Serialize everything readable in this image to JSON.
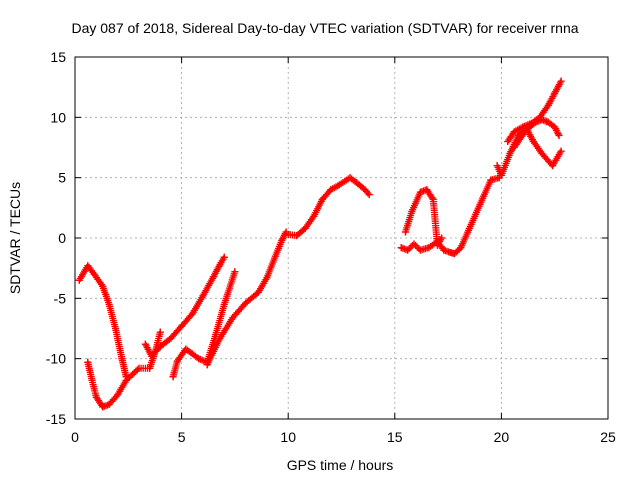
{
  "chart_data": {
    "type": "scatter",
    "title": "Day 087 of 2018, Sidereal Day-to-day VTEC variation (SDTVAR) for receiver rnna",
    "xlabel": "GPS time / hours",
    "ylabel": "SDTVAR / TECUs",
    "xlim": [
      0,
      25
    ],
    "ylim": [
      -15,
      15
    ],
    "xticks": [
      "0",
      "5",
      "10",
      "15",
      "20",
      "25"
    ],
    "yticks": [
      "-15",
      "-10",
      "-5",
      "0",
      "5",
      "10",
      "15"
    ],
    "grid": true,
    "marker": "plus",
    "color": "#ff0000",
    "series": [
      {
        "x": [
          0.2,
          0.6,
          0.9,
          1.3,
          1.6,
          1.9,
          2.2,
          2.4
        ],
        "y": [
          -3.5,
          -2.3,
          -3.0,
          -4.0,
          -5.5,
          -7.5,
          -10.0,
          -11.5
        ]
      },
      {
        "x": [
          0.6,
          0.8,
          1.0,
          1.3,
          1.6,
          2.0,
          2.4,
          3.0,
          3.5,
          3.8,
          4.0
        ],
        "y": [
          -10.3,
          -11.8,
          -13.2,
          -14.0,
          -13.8,
          -13.0,
          -11.8,
          -10.8,
          -10.8,
          -9.2,
          -7.8
        ]
      },
      {
        "x": [
          3.3,
          3.6,
          4.0,
          4.5,
          5.0,
          5.5,
          6.0,
          6.5,
          6.8,
          7.0
        ],
        "y": [
          -8.8,
          -9.8,
          -9.0,
          -8.3,
          -7.3,
          -6.3,
          -4.8,
          -3.2,
          -2.2,
          -1.6
        ]
      },
      {
        "x": [
          4.6,
          4.8,
          5.2,
          5.8,
          6.2,
          6.6,
          7.0,
          7.5
        ],
        "y": [
          -11.5,
          -10.2,
          -9.2,
          -10.0,
          -10.3,
          -8.0,
          -5.5,
          -2.8
        ]
      },
      {
        "x": [
          6.2,
          6.8,
          7.4,
          8.0,
          8.6,
          9.0,
          9.4,
          9.7,
          9.9
        ],
        "y": [
          -10.5,
          -8.3,
          -6.6,
          -5.4,
          -4.5,
          -3.3,
          -1.5,
          -0.2,
          0.5
        ]
      },
      {
        "x": [
          10.0,
          10.4,
          10.8,
          11.2,
          11.6,
          12.0,
          12.4,
          12.9,
          13.2,
          13.6,
          13.8
        ],
        "y": [
          0.3,
          0.2,
          0.8,
          1.8,
          3.2,
          4.0,
          4.4,
          5.0,
          4.6,
          4.0,
          3.6
        ]
      },
      {
        "x": [
          15.3,
          15.6,
          15.9,
          16.2,
          16.6,
          17.0,
          17.3,
          17.6,
          17.8,
          18.1,
          18.5,
          19.0,
          19.5,
          19.9
        ],
        "y": [
          -0.8,
          -1.0,
          -0.5,
          -1.0,
          -0.8,
          -0.3,
          -1.0,
          -1.2,
          -1.3,
          -0.8,
          0.8,
          2.8,
          4.8,
          5.0
        ]
      },
      {
        "x": [
          15.5,
          15.8,
          16.2,
          16.5,
          16.8,
          17.0,
          17.2
        ],
        "y": [
          0.5,
          2.2,
          3.8,
          4.0,
          3.2,
          -0.6,
          0.0
        ]
      },
      {
        "x": [
          19.8,
          20.0,
          20.4,
          20.8,
          21.2,
          21.5,
          21.9,
          22.4,
          22.8
        ],
        "y": [
          6.0,
          5.2,
          7.0,
          8.5,
          9.0,
          8.0,
          7.0,
          6.0,
          7.2
        ]
      },
      {
        "x": [
          20.3,
          20.6,
          21.0,
          21.4,
          21.8,
          22.2,
          22.5,
          22.8
        ],
        "y": [
          8.0,
          8.8,
          9.2,
          9.5,
          10.0,
          11.0,
          12.0,
          13.0
        ]
      },
      {
        "x": [
          20.6,
          20.9,
          21.2,
          21.6,
          21.9,
          22.2,
          22.5,
          22.7
        ],
        "y": [
          7.5,
          8.3,
          9.0,
          9.6,
          9.8,
          9.6,
          9.2,
          8.5
        ]
      }
    ]
  }
}
